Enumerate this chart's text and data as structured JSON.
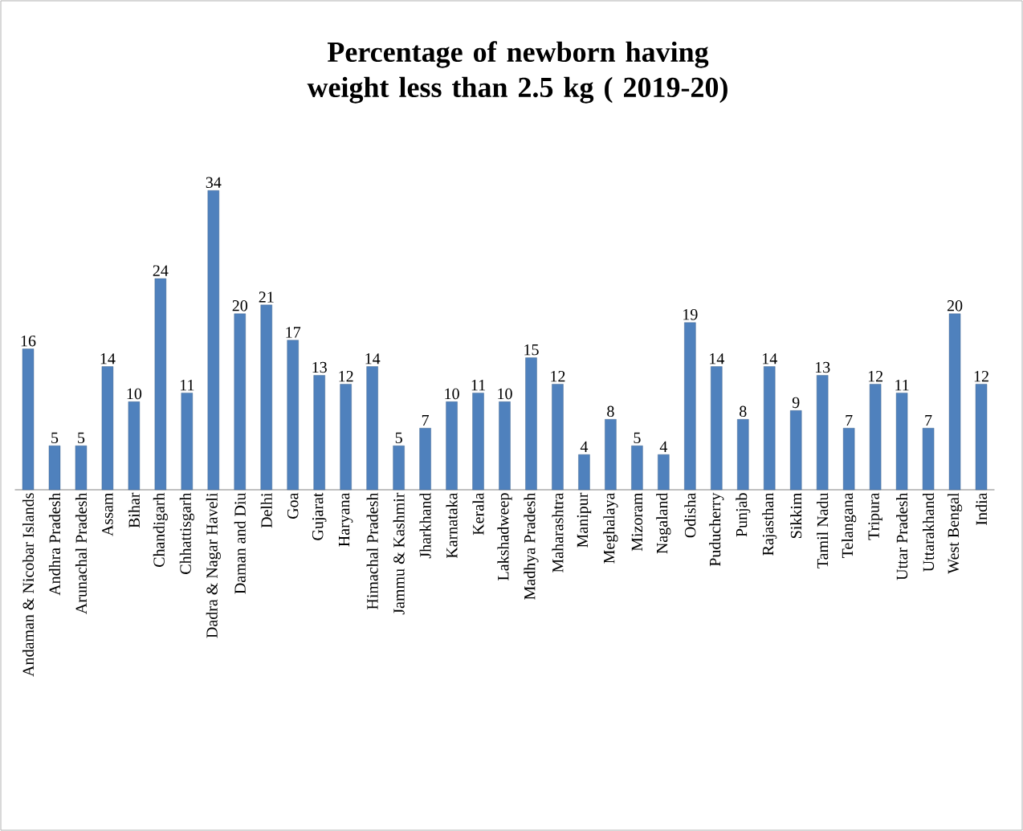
{
  "chart_data": {
    "type": "bar",
    "title": "Percentage of newborn having weight less than 2.5 kg ( 2019-20)",
    "categories": [
      "Andaman & Nicobar Islands",
      "Andhra Pradesh",
      "Arunachal Pradesh",
      "Assam",
      "Bihar",
      "Chandigarh",
      "Chhattisgarh",
      "Dadra & Nagar Haveli",
      "Daman and Diu",
      "Delhi",
      "Goa",
      "Gujarat",
      "Haryana",
      "Himachal Pradesh",
      "Jammu & Kashmir",
      "Jharkhand",
      "Karnataka",
      "Kerala",
      "Lakshadweep",
      "Madhya Pradesh",
      "Maharashtra",
      "Manipur",
      "Meghalaya",
      "Mizoram",
      "Nagaland",
      "Odisha",
      "Puducherry",
      "Punjab",
      "Rajasthan",
      "Sikkim",
      "Tamil Nadu",
      "Telangana",
      "Tripura",
      "Uttar Pradesh",
      "Uttarakhand",
      "West Bengal",
      "India"
    ],
    "values": [
      16,
      5,
      5,
      14,
      10,
      24,
      11,
      34,
      20,
      21,
      17,
      13,
      12,
      14,
      5,
      7,
      10,
      11,
      10,
      15,
      12,
      4,
      8,
      5,
      4,
      19,
      14,
      8,
      14,
      9,
      13,
      7,
      12,
      11,
      7,
      20,
      12
    ],
    "color": "#4f81bd",
    "data_labels": true
  }
}
